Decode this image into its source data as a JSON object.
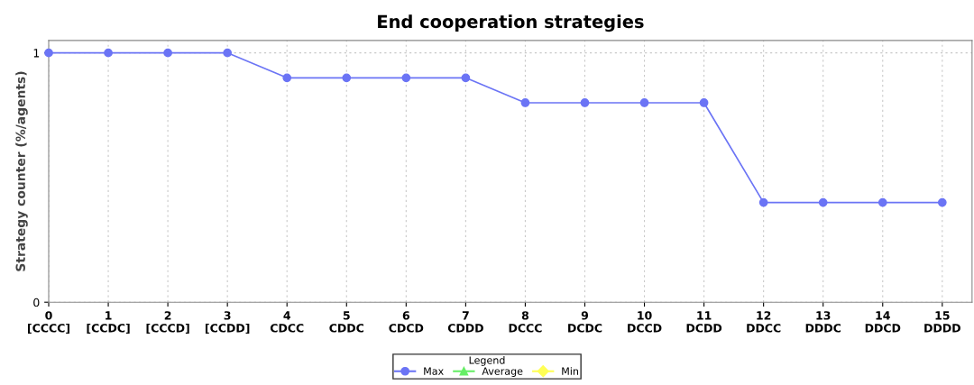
{
  "chart_data": {
    "type": "line",
    "title": "End cooperation strategies",
    "ylabel": "Strategy counter (%/agents)",
    "x": [
      0,
      1,
      2,
      3,
      4,
      5,
      6,
      7,
      8,
      9,
      10,
      11,
      12,
      13,
      14,
      15
    ],
    "xlim": [
      0,
      15.5
    ],
    "ylim": [
      0,
      1.05
    ],
    "yticks": [
      0,
      1
    ],
    "xticks": [
      {
        "value": 0,
        "label": "0\n[CCCC]"
      },
      {
        "value": 1,
        "label": "1\n[CCDC]"
      },
      {
        "value": 2,
        "label": "2\n[CCCD]"
      },
      {
        "value": 3,
        "label": "3\n[CCDD]"
      },
      {
        "value": 4,
        "label": "4\nCDCC"
      },
      {
        "value": 5,
        "label": "5\nCDDC"
      },
      {
        "value": 6,
        "label": "6\nCDCD"
      },
      {
        "value": 7,
        "label": "7\nCDDD"
      },
      {
        "value": 8,
        "label": "8\nDCCC"
      },
      {
        "value": 9,
        "label": "9\nDCDC"
      },
      {
        "value": 10,
        "label": "10\nDCCD"
      },
      {
        "value": 11,
        "label": "11\nDCDD"
      },
      {
        "value": 12,
        "label": "12\nDDCC"
      },
      {
        "value": 13,
        "label": "13\nDDDC"
      },
      {
        "value": 14,
        "label": "14\nDDCD"
      },
      {
        "value": 15,
        "label": "15\nDDDD"
      }
    ],
    "series": [
      {
        "name": "Max",
        "color": "#6b74f5",
        "marker": "circle",
        "values": [
          1,
          1,
          1,
          1,
          0.9,
          0.9,
          0.9,
          0.9,
          0.8,
          0.8,
          0.8,
          0.8,
          0.4,
          0.4,
          0.4,
          0.4
        ]
      },
      {
        "name": "Average",
        "color": "#66ee66",
        "marker": "triangle",
        "values": [
          null,
          null,
          null,
          null,
          null,
          null,
          null,
          null,
          null,
          null,
          null,
          null,
          null,
          null,
          null,
          null
        ]
      },
      {
        "name": "Min",
        "color": "#ffff55",
        "marker": "diamond",
        "values": [
          null,
          null,
          null,
          null,
          null,
          null,
          null,
          null,
          null,
          null,
          null,
          null,
          null,
          null,
          null,
          null
        ]
      }
    ],
    "grid": true,
    "legend": "bottom",
    "legend_title": "Legend",
    "line_style": "solid"
  }
}
